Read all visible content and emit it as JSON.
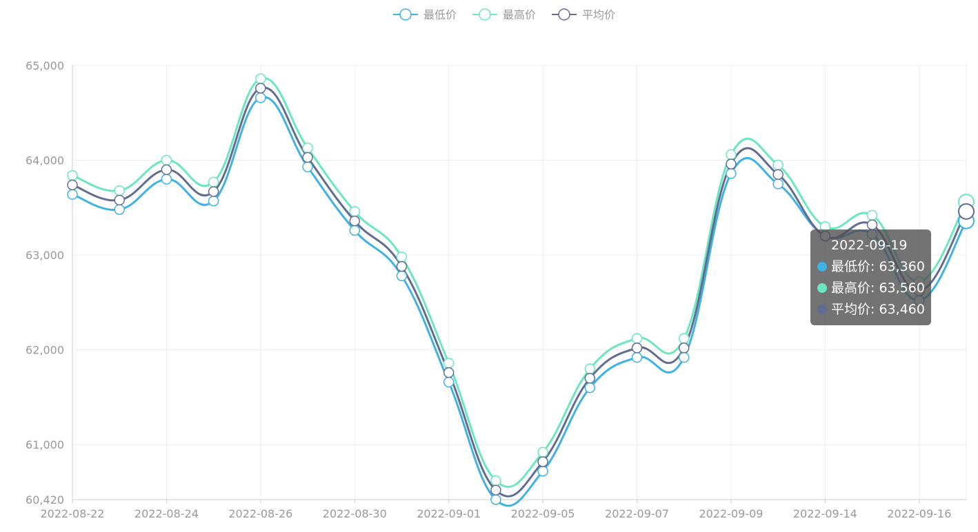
{
  "colors": {
    "low": "#3fb1e3",
    "high": "#6be6c1",
    "avg": "#626c91",
    "grid": "#eeeeee",
    "axis": "#cccccc",
    "text": "#999999"
  },
  "tooltip": {
    "date": "2022-09-19",
    "rows": [
      {
        "label": "最低价: 63,360",
        "color": "#3fb1e3"
      },
      {
        "label": "最高价: 63,560",
        "color": "#6be6c1"
      },
      {
        "label": "平均价: 63,460",
        "color": "#626c91"
      }
    ]
  },
  "chart_data": {
    "type": "line",
    "smooth": true,
    "legend_position": "top-center",
    "grid": true,
    "x": [
      "2022-08-22",
      "2022-08-23",
      "2022-08-24",
      "2022-08-25",
      "2022-08-26",
      "2022-08-29",
      "2022-08-30",
      "2022-08-31",
      "2022-09-01",
      "2022-09-02",
      "2022-09-05",
      "2022-09-06",
      "2022-09-07",
      "2022-09-08",
      "2022-09-09",
      "2022-09-13",
      "2022-09-14",
      "2022-09-15",
      "2022-09-16",
      "2022-09-19"
    ],
    "x_tick_labels": [
      "2022-08-22",
      "2022-08-24",
      "2022-08-26",
      "2022-08-30",
      "2022-09-01",
      "2022-09-05",
      "2022-09-07",
      "2022-09-09",
      "2022-09-14",
      "2022-09-16"
    ],
    "ylim": [
      60420,
      65000
    ],
    "y_ticks": [
      "60,420",
      "61,000",
      "62,000",
      "63,000",
      "64,000",
      "65,000"
    ],
    "y_tick_values": [
      60420,
      61000,
      62000,
      63000,
      64000,
      65000
    ],
    "series": [
      {
        "name": "最低价",
        "key": "low",
        "values": [
          63640,
          63480,
          63800,
          63570,
          64660,
          63930,
          63260,
          62780,
          61660,
          60420,
          60720,
          61600,
          61920,
          61920,
          63860,
          63750,
          63200,
          63220,
          62520,
          63360
        ]
      },
      {
        "name": "最高价",
        "key": "high",
        "values": [
          63840,
          63680,
          64000,
          63770,
          64860,
          64130,
          63460,
          62980,
          61860,
          60620,
          60920,
          61800,
          62120,
          62120,
          64060,
          63950,
          63300,
          63420,
          62720,
          63560
        ]
      },
      {
        "name": "平均价",
        "key": "avg",
        "values": [
          63740,
          63580,
          63900,
          63670,
          64760,
          64030,
          63360,
          62880,
          61760,
          60520,
          60820,
          61700,
          62020,
          62020,
          63960,
          63850,
          63200,
          63320,
          62620,
          63460
        ]
      }
    ]
  }
}
